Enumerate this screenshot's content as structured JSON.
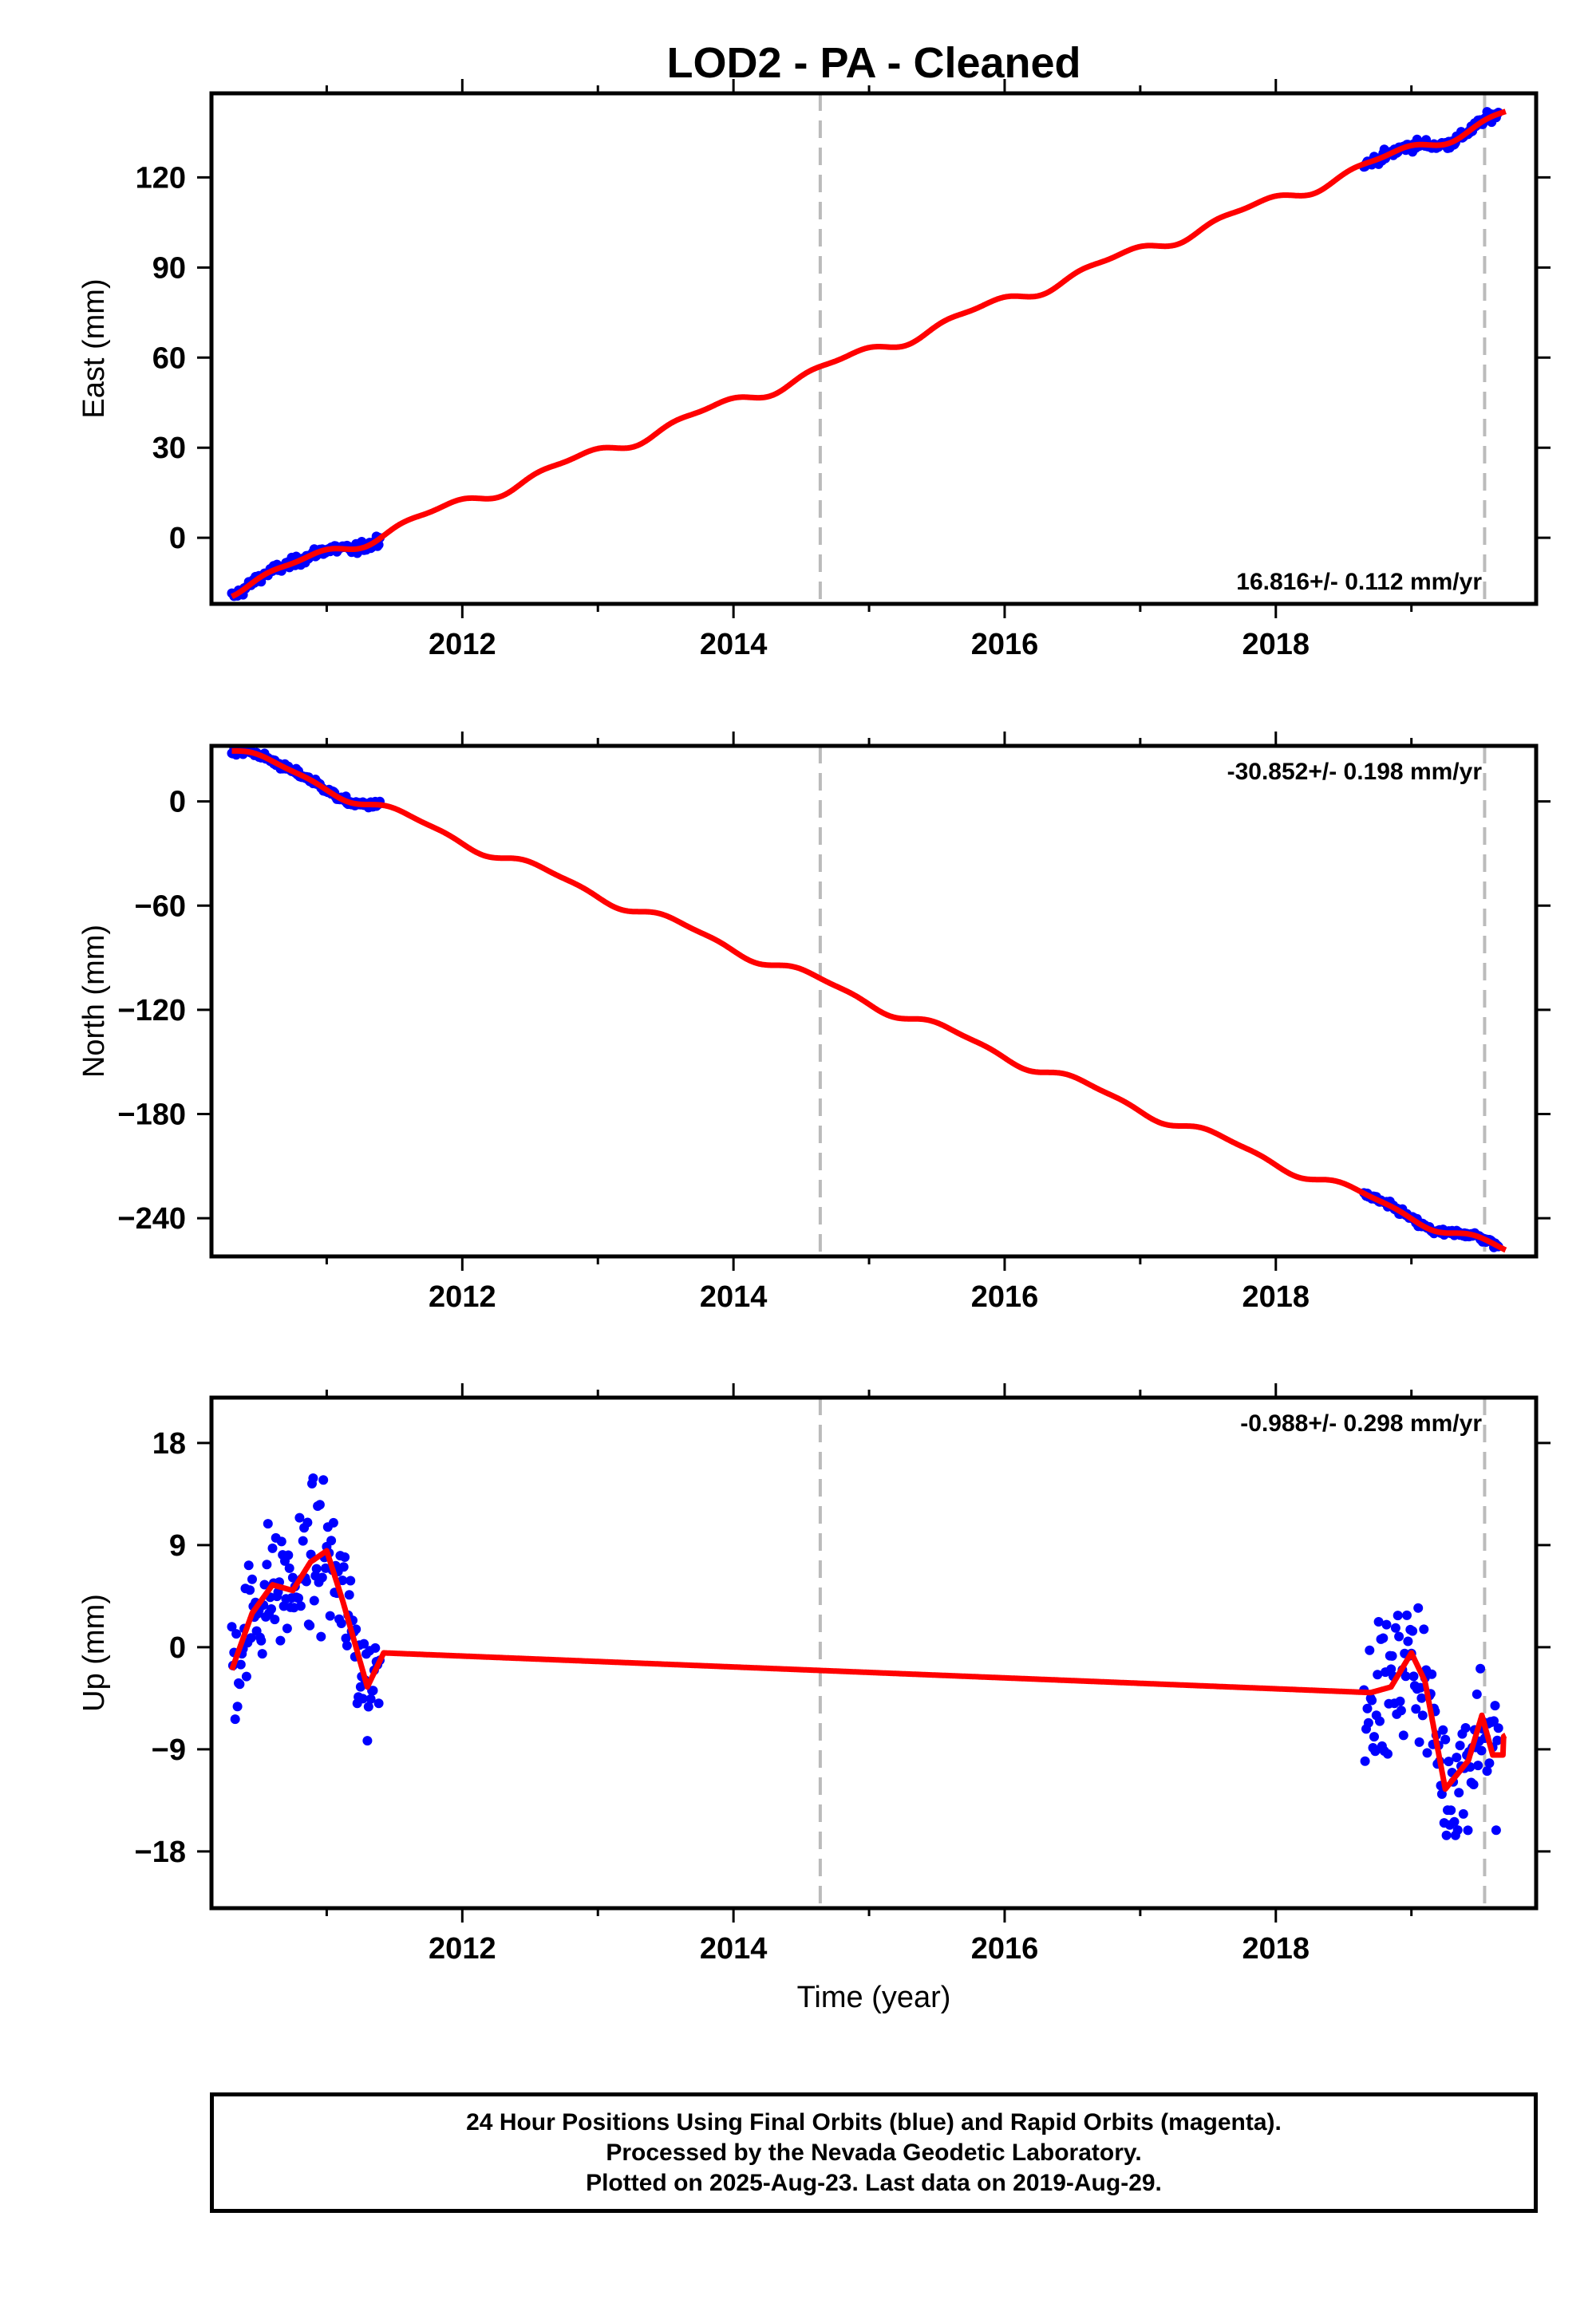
{
  "title": "LOD2  - PA - Cleaned",
  "xlabel": "Time (year)",
  "footer": {
    "line1": "24 Hour Positions Using Final Orbits (blue) and Rapid Orbits (magenta).",
    "line2": "Processed by the Nevada Geodetic Laboratory.",
    "line3": "Plotted on 2025-Aug-23. Last data on 2019-Aug-29."
  },
  "colors": {
    "final_orbits": "#0000ff",
    "model": "#ff0000",
    "event_line": "#bbbbbb"
  },
  "chart_data": [
    {
      "type": "scatter",
      "component": "east",
      "ylabel": "East (mm)",
      "rate": "16.816+/- 0.112 mm/yr",
      "xlim": [
        2010.15,
        2019.92
      ],
      "ylim": [
        -22,
        148
      ],
      "xticks": [
        2012,
        2014,
        2016,
        2018
      ],
      "yticks": [
        0,
        30,
        60,
        90,
        120
      ],
      "event_lines": [
        2014.64,
        2019.54
      ],
      "segments": [
        [
          2010.3,
          2011.4
        ],
        [
          2018.65,
          2019.65
        ]
      ],
      "model": {
        "start_year": 2010.3,
        "start_value": -17,
        "slope": 16.816,
        "annual_amp": 1.8,
        "annual_phase_year": 2010.55,
        "semiannual_amp": 0.8,
        "semiannual_phase_year": 2010.4
      },
      "noise": 1.2
    },
    {
      "type": "scatter",
      "component": "north",
      "ylabel": "North (mm)",
      "rate": "-30.852+/- 0.198 mm/yr",
      "xlim": [
        2010.15,
        2019.92
      ],
      "ylim": [
        -262,
        32
      ],
      "xticks": [
        2012,
        2014,
        2016,
        2018
      ],
      "yticks": [
        0,
        -60,
        -120,
        -180,
        -240
      ],
      "event_lines": [
        2014.64,
        2019.54
      ],
      "segments": [
        [
          2010.3,
          2011.4
        ],
        [
          2018.65,
          2019.65
        ]
      ],
      "model": {
        "start_year": 2010.3,
        "start_value": 30,
        "slope": -30.852,
        "annual_amp": 3.0,
        "annual_phase_year": 2010.35,
        "semiannual_amp": 1.0,
        "semiannual_phase_year": 2010.3
      },
      "noise": 1.5
    },
    {
      "type": "scatter",
      "component": "up",
      "ylabel": "Up (mm)",
      "rate": "-0.988+/- 0.298 mm/yr",
      "xlim": [
        2010.15,
        2019.92
      ],
      "ylim": [
        -23,
        22
      ],
      "xticks": [
        2012,
        2014,
        2016,
        2018
      ],
      "yticks": [
        18,
        9,
        0,
        -9,
        -18
      ],
      "event_lines": [
        2014.64,
        2019.54
      ],
      "segments": [
        [
          2010.3,
          2011.4
        ],
        [
          2018.65,
          2019.65
        ]
      ],
      "model": {
        "start_year": 2010.3,
        "start_value": 1.0,
        "slope": -0.988,
        "annual_amp": 4.0,
        "annual_phase_year": 2010.72,
        "semiannual_amp": 1.8,
        "semiannual_phase_year": 2010.5
      },
      "up_model_knots": [
        [
          2010.3,
          -2
        ],
        [
          2010.45,
          3
        ],
        [
          2010.6,
          5.5
        ],
        [
          2010.75,
          5
        ],
        [
          2010.88,
          7.5
        ],
        [
          2011.0,
          8.5
        ],
        [
          2011.12,
          4
        ],
        [
          2011.3,
          -3.5
        ],
        [
          2011.42,
          -0.5
        ],
        [
          2018.7,
          -4
        ],
        [
          2018.85,
          -3.5
        ],
        [
          2019.0,
          -0.5
        ],
        [
          2019.1,
          -3
        ],
        [
          2019.25,
          -12.5
        ],
        [
          2019.42,
          -10
        ],
        [
          2019.52,
          -6
        ],
        [
          2019.6,
          -9.5
        ],
        [
          2019.68,
          -9.5
        ]
      ],
      "noise": 4.0
    }
  ]
}
